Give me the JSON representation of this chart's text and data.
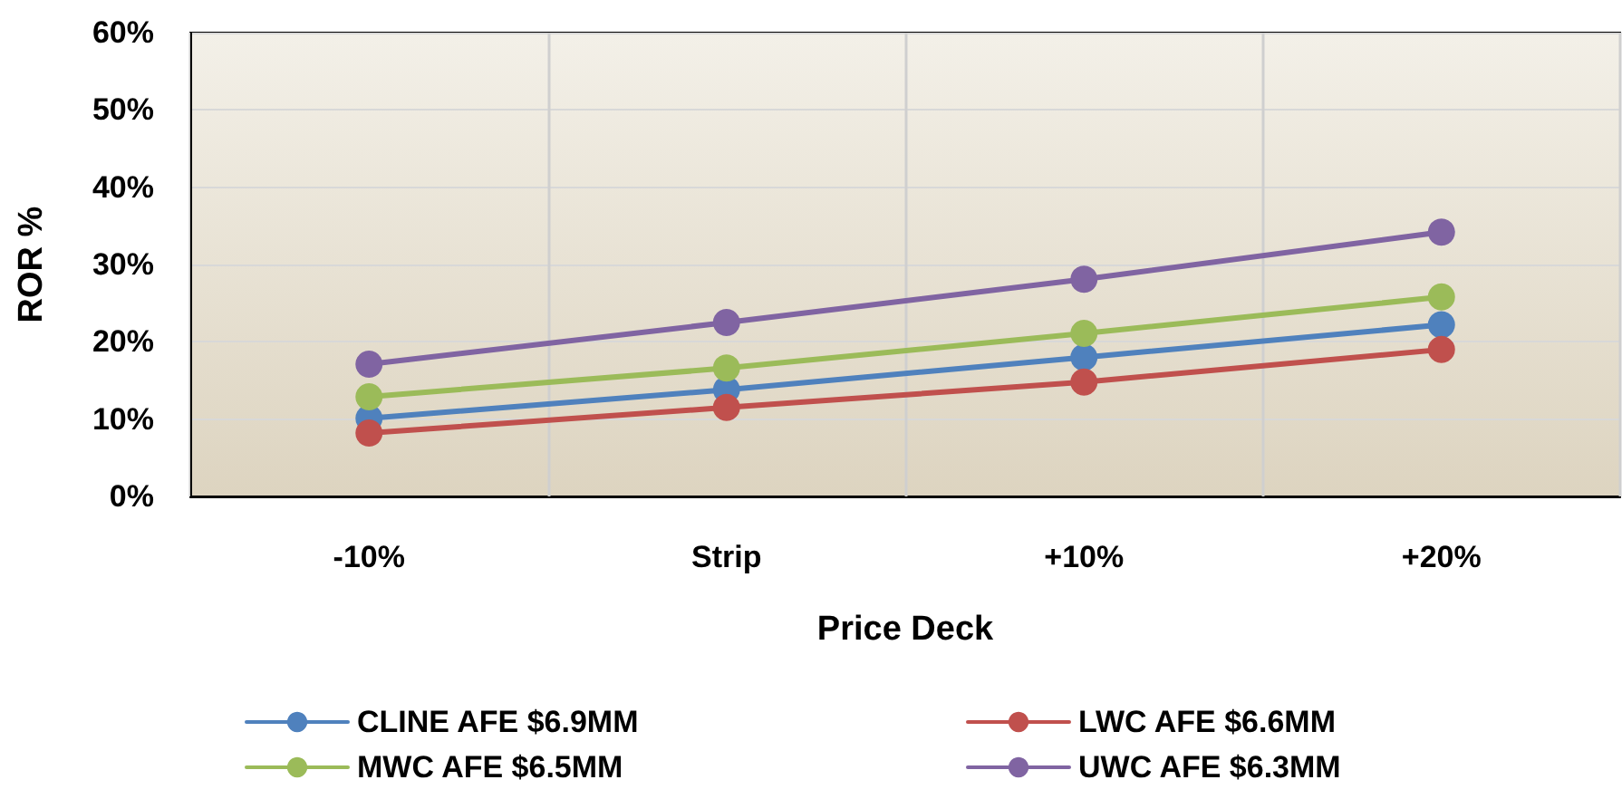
{
  "chart_data": {
    "type": "line",
    "xlabel": "Price Deck",
    "ylabel": "ROR %",
    "categories": [
      "-10%",
      "Strip",
      "+10%",
      "+20%"
    ],
    "series": [
      {
        "name": "CLINE AFE $6.9MM",
        "color": "#4f81bd",
        "values": [
          10.1,
          13.8,
          18.0,
          22.2
        ]
      },
      {
        "name": "LWC AFE $6.6MM",
        "color": "#c0504d",
        "values": [
          8.2,
          11.5,
          14.8,
          19.0
        ]
      },
      {
        "name": "MWC AFE $6.5MM",
        "color": "#9bbb59",
        "values": [
          12.9,
          16.6,
          21.1,
          25.8
        ]
      },
      {
        "name": "UWC AFE $6.3MM",
        "color": "#8064a2",
        "values": [
          17.1,
          22.5,
          28.1,
          34.2
        ]
      }
    ],
    "ylim": [
      0,
      60
    ],
    "yticks": [
      {
        "value": 0,
        "label": "0%"
      },
      {
        "value": 10,
        "label": "10%"
      },
      {
        "value": 20,
        "label": "20%"
      },
      {
        "value": 30,
        "label": "30%"
      },
      {
        "value": 40,
        "label": "40%"
      },
      {
        "value": 50,
        "label": "50%"
      },
      {
        "value": 60,
        "label": "60%"
      }
    ],
    "grid": true,
    "legend": "bottom",
    "marker": "circle",
    "line_style": "solid"
  }
}
